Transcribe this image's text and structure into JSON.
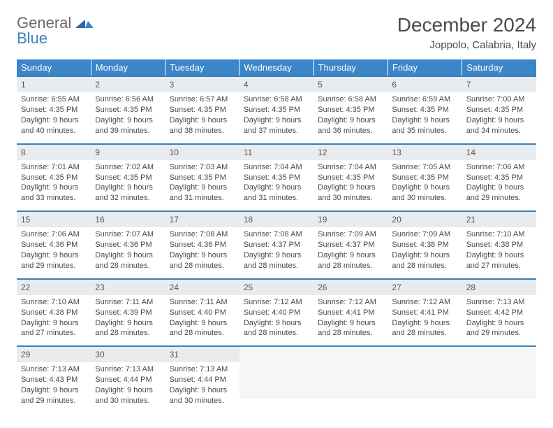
{
  "logo": {
    "part1": "General",
    "part2": "Blue"
  },
  "title": "December 2024",
  "location": "Joppolo, Calabria, Italy",
  "colors": {
    "header_bg": "#3a86c8",
    "header_text": "#ffffff",
    "daynum_bg": "#e9ecef",
    "border": "#3a7fb5",
    "text": "#4a4a4a",
    "logo_gray": "#6a6a6a",
    "logo_blue": "#3a7fbf",
    "page_bg": "#ffffff"
  },
  "typography": {
    "title_fontsize": 28,
    "location_fontsize": 15,
    "dow_fontsize": 13,
    "daynum_fontsize": 12,
    "body_fontsize": 11
  },
  "days_of_week": [
    "Sunday",
    "Monday",
    "Tuesday",
    "Wednesday",
    "Thursday",
    "Friday",
    "Saturday"
  ],
  "weeks": [
    [
      {
        "n": "1",
        "sr": "Sunrise: 6:55 AM",
        "ss": "Sunset: 4:35 PM",
        "dl1": "Daylight: 9 hours",
        "dl2": "and 40 minutes."
      },
      {
        "n": "2",
        "sr": "Sunrise: 6:56 AM",
        "ss": "Sunset: 4:35 PM",
        "dl1": "Daylight: 9 hours",
        "dl2": "and 39 minutes."
      },
      {
        "n": "3",
        "sr": "Sunrise: 6:57 AM",
        "ss": "Sunset: 4:35 PM",
        "dl1": "Daylight: 9 hours",
        "dl2": "and 38 minutes."
      },
      {
        "n": "4",
        "sr": "Sunrise: 6:58 AM",
        "ss": "Sunset: 4:35 PM",
        "dl1": "Daylight: 9 hours",
        "dl2": "and 37 minutes."
      },
      {
        "n": "5",
        "sr": "Sunrise: 6:58 AM",
        "ss": "Sunset: 4:35 PM",
        "dl1": "Daylight: 9 hours",
        "dl2": "and 36 minutes."
      },
      {
        "n": "6",
        "sr": "Sunrise: 6:59 AM",
        "ss": "Sunset: 4:35 PM",
        "dl1": "Daylight: 9 hours",
        "dl2": "and 35 minutes."
      },
      {
        "n": "7",
        "sr": "Sunrise: 7:00 AM",
        "ss": "Sunset: 4:35 PM",
        "dl1": "Daylight: 9 hours",
        "dl2": "and 34 minutes."
      }
    ],
    [
      {
        "n": "8",
        "sr": "Sunrise: 7:01 AM",
        "ss": "Sunset: 4:35 PM",
        "dl1": "Daylight: 9 hours",
        "dl2": "and 33 minutes."
      },
      {
        "n": "9",
        "sr": "Sunrise: 7:02 AM",
        "ss": "Sunset: 4:35 PM",
        "dl1": "Daylight: 9 hours",
        "dl2": "and 32 minutes."
      },
      {
        "n": "10",
        "sr": "Sunrise: 7:03 AM",
        "ss": "Sunset: 4:35 PM",
        "dl1": "Daylight: 9 hours",
        "dl2": "and 31 minutes."
      },
      {
        "n": "11",
        "sr": "Sunrise: 7:04 AM",
        "ss": "Sunset: 4:35 PM",
        "dl1": "Daylight: 9 hours",
        "dl2": "and 31 minutes."
      },
      {
        "n": "12",
        "sr": "Sunrise: 7:04 AM",
        "ss": "Sunset: 4:35 PM",
        "dl1": "Daylight: 9 hours",
        "dl2": "and 30 minutes."
      },
      {
        "n": "13",
        "sr": "Sunrise: 7:05 AM",
        "ss": "Sunset: 4:35 PM",
        "dl1": "Daylight: 9 hours",
        "dl2": "and 30 minutes."
      },
      {
        "n": "14",
        "sr": "Sunrise: 7:06 AM",
        "ss": "Sunset: 4:35 PM",
        "dl1": "Daylight: 9 hours",
        "dl2": "and 29 minutes."
      }
    ],
    [
      {
        "n": "15",
        "sr": "Sunrise: 7:06 AM",
        "ss": "Sunset: 4:36 PM",
        "dl1": "Daylight: 9 hours",
        "dl2": "and 29 minutes."
      },
      {
        "n": "16",
        "sr": "Sunrise: 7:07 AM",
        "ss": "Sunset: 4:36 PM",
        "dl1": "Daylight: 9 hours",
        "dl2": "and 28 minutes."
      },
      {
        "n": "17",
        "sr": "Sunrise: 7:08 AM",
        "ss": "Sunset: 4:36 PM",
        "dl1": "Daylight: 9 hours",
        "dl2": "and 28 minutes."
      },
      {
        "n": "18",
        "sr": "Sunrise: 7:08 AM",
        "ss": "Sunset: 4:37 PM",
        "dl1": "Daylight: 9 hours",
        "dl2": "and 28 minutes."
      },
      {
        "n": "19",
        "sr": "Sunrise: 7:09 AM",
        "ss": "Sunset: 4:37 PM",
        "dl1": "Daylight: 9 hours",
        "dl2": "and 28 minutes."
      },
      {
        "n": "20",
        "sr": "Sunrise: 7:09 AM",
        "ss": "Sunset: 4:38 PM",
        "dl1": "Daylight: 9 hours",
        "dl2": "and 28 minutes."
      },
      {
        "n": "21",
        "sr": "Sunrise: 7:10 AM",
        "ss": "Sunset: 4:38 PM",
        "dl1": "Daylight: 9 hours",
        "dl2": "and 27 minutes."
      }
    ],
    [
      {
        "n": "22",
        "sr": "Sunrise: 7:10 AM",
        "ss": "Sunset: 4:38 PM",
        "dl1": "Daylight: 9 hours",
        "dl2": "and 27 minutes."
      },
      {
        "n": "23",
        "sr": "Sunrise: 7:11 AM",
        "ss": "Sunset: 4:39 PM",
        "dl1": "Daylight: 9 hours",
        "dl2": "and 28 minutes."
      },
      {
        "n": "24",
        "sr": "Sunrise: 7:11 AM",
        "ss": "Sunset: 4:40 PM",
        "dl1": "Daylight: 9 hours",
        "dl2": "and 28 minutes."
      },
      {
        "n": "25",
        "sr": "Sunrise: 7:12 AM",
        "ss": "Sunset: 4:40 PM",
        "dl1": "Daylight: 9 hours",
        "dl2": "and 28 minutes."
      },
      {
        "n": "26",
        "sr": "Sunrise: 7:12 AM",
        "ss": "Sunset: 4:41 PM",
        "dl1": "Daylight: 9 hours",
        "dl2": "and 28 minutes."
      },
      {
        "n": "27",
        "sr": "Sunrise: 7:12 AM",
        "ss": "Sunset: 4:41 PM",
        "dl1": "Daylight: 9 hours",
        "dl2": "and 28 minutes."
      },
      {
        "n": "28",
        "sr": "Sunrise: 7:13 AM",
        "ss": "Sunset: 4:42 PM",
        "dl1": "Daylight: 9 hours",
        "dl2": "and 29 minutes."
      }
    ],
    [
      {
        "n": "29",
        "sr": "Sunrise: 7:13 AM",
        "ss": "Sunset: 4:43 PM",
        "dl1": "Daylight: 9 hours",
        "dl2": "and 29 minutes."
      },
      {
        "n": "30",
        "sr": "Sunrise: 7:13 AM",
        "ss": "Sunset: 4:44 PM",
        "dl1": "Daylight: 9 hours",
        "dl2": "and 30 minutes."
      },
      {
        "n": "31",
        "sr": "Sunrise: 7:13 AM",
        "ss": "Sunset: 4:44 PM",
        "dl1": "Daylight: 9 hours",
        "dl2": "and 30 minutes."
      },
      null,
      null,
      null,
      null
    ]
  ]
}
